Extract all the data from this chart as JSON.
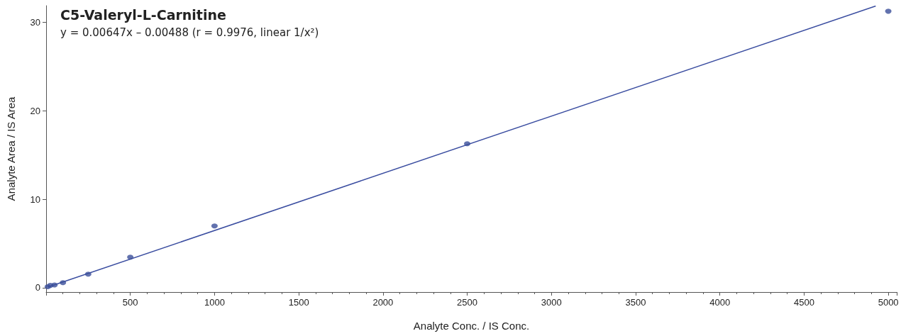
{
  "chart_data": {
    "type": "scatter",
    "title": "C5-Valeryl-L-Carnitine",
    "subtitle": "y = 0.00647x – 0.00488 (r = 0.9976, linear 1/x²)",
    "xlabel": "Analyte Conc. / IS Conc.",
    "ylabel": "Analyte Area / IS Area",
    "x": [
      10,
      25,
      50,
      100,
      250,
      500,
      1000,
      2500,
      5000
    ],
    "series": [
      {
        "color": "#3b4f9a",
        "values": [
          0.1,
          0.25,
          0.3,
          0.56,
          1.52,
          3.45,
          6.98,
          16.28,
          31.27
        ]
      },
      {
        "type": "line",
        "color": "#3a4da0",
        "x": [
          10,
          4925
        ],
        "values": [
          0.06,
          31.86
        ],
        "marker": "none",
        "line_style": "solid"
      }
    ],
    "xlim": [
      0,
      5050
    ],
    "ylim": [
      -0.5,
      31.9
    ],
    "xticks": [
      {
        "value": 0,
        "label": null
      },
      500,
      1000,
      1500,
      2000,
      2500,
      3000,
      3500,
      4000,
      4500,
      5000
    ],
    "yticks": [
      0,
      10,
      20,
      30
    ],
    "marker": "circle",
    "grid": false
  }
}
